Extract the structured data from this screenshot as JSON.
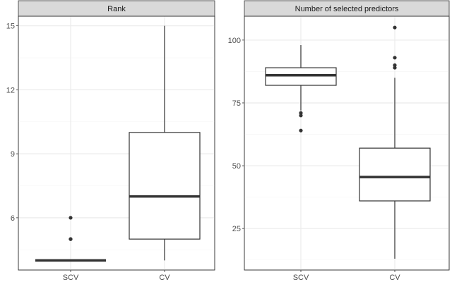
{
  "chart_data": [
    {
      "type": "boxplot",
      "title": "Rank",
      "categories": [
        "SCV",
        "CV"
      ],
      "ylim": [
        3.55,
        15.45
      ],
      "yticks": [
        6,
        9,
        12,
        15
      ],
      "grid": true,
      "boxes": [
        {
          "category": "SCV",
          "whisker_low": 4,
          "q1": 4,
          "median": 4,
          "q3": 4,
          "whisker_high": 4,
          "outliers": [
            5,
            5,
            6
          ]
        },
        {
          "category": "CV",
          "whisker_low": 4,
          "q1": 5,
          "median": 7,
          "q3": 10,
          "whisker_high": 15,
          "outliers": []
        }
      ]
    },
    {
      "type": "boxplot",
      "title": "Number of selected predictors",
      "categories": [
        "SCV",
        "CV"
      ],
      "ylim": [
        8.5,
        109.5
      ],
      "yticks": [
        25,
        50,
        75,
        100
      ],
      "grid": true,
      "boxes": [
        {
          "category": "SCV",
          "whisker_low": 72,
          "q1": 82,
          "median": 86,
          "q3": 89,
          "whisker_high": 98,
          "outliers": [
            71,
            70,
            64
          ]
        },
        {
          "category": "CV",
          "whisker_low": 13,
          "q1": 36,
          "median": 45.5,
          "q3": 57,
          "whisker_high": 85,
          "outliers": [
            89,
            90,
            93,
            105
          ]
        }
      ]
    }
  ]
}
